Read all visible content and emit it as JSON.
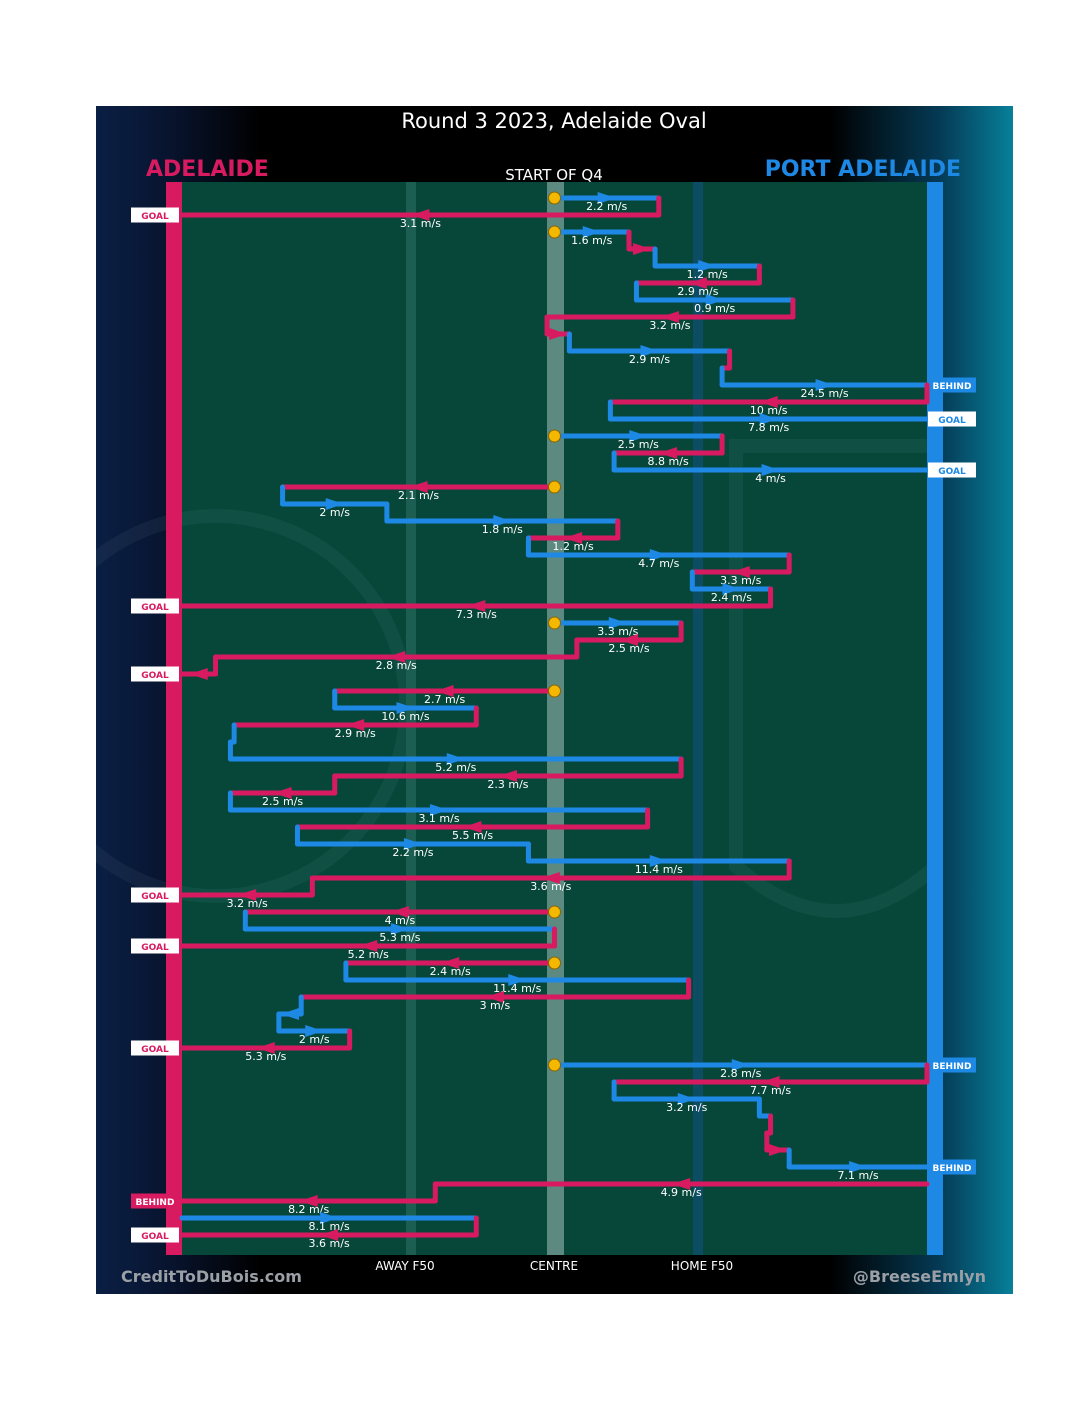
{
  "title": "Round 3 2023, Adelaide Oval",
  "teams": {
    "left": {
      "name": "ADELAIDE",
      "color": "#d81b60"
    },
    "right": {
      "name": "PORT ADELAIDE",
      "color": "#1e88e5"
    }
  },
  "subtitle": "START OF Q4",
  "footer": {
    "left": "CreditToDuBois.com",
    "right": "@BreeseEmlyn"
  },
  "chart_data": {
    "type": "line",
    "title": "Round 3 2023, Adelaide Oval",
    "x_axis_labels": [
      "AWAY F50",
      "CENTRE",
      "HOME F50"
    ],
    "colors": {
      "adelaide": "#d81b60",
      "port_adelaide": "#1e88e5",
      "stoppage": "#f5b800",
      "ground": "#06473a"
    },
    "x_scale": "field position from Adelaide's goal (0) to Port Adelaide's goal (100); centre = 50",
    "chains": [
      {
        "segments": [
          {
            "team": "port_adelaide",
            "start": 50,
            "peak": 64,
            "end": 64,
            "speed": "2.2 m/s"
          },
          {
            "team": "adelaide",
            "start": 64,
            "end": 0,
            "speed": "3.1 m/s",
            "result": "GOAL"
          }
        ]
      },
      {
        "segments": [
          {
            "team": "port_adelaide",
            "start": 50,
            "end": 60,
            "speed": "1.6 m/s"
          },
          {
            "team": "adelaide",
            "start": 60,
            "end": 63.5,
            "speed": ""
          },
          {
            "team": "port_adelaide",
            "start": 63.5,
            "peak": 77.5,
            "end": 77.5,
            "speed": "1.2 m/s"
          },
          {
            "team": "adelaide",
            "start": 77.5,
            "end": 61,
            "speed": "2.9 m/s"
          },
          {
            "team": "port_adelaide",
            "start": 61,
            "end": 82,
            "speed": "0.9 m/s"
          },
          {
            "team": "adelaide",
            "start": 82,
            "end": 49,
            "speed": "3.2 m/s"
          },
          {
            "team": "adelaide",
            "start": 49,
            "end": 52,
            "speed": ""
          },
          {
            "team": "port_adelaide",
            "start": 52,
            "end": 73.5,
            "speed": "2.9 m/s"
          },
          {
            "team": "adelaide",
            "start": 73.5,
            "end": 72.5,
            "speed": ""
          },
          {
            "team": "port_adelaide",
            "start": 72.5,
            "end": 100,
            "speed": "24.5 m/s",
            "result": "BEHIND"
          },
          {
            "team": "adelaide",
            "start": 100,
            "end": 57.5,
            "speed": "10 m/s"
          },
          {
            "team": "port_adelaide",
            "start": 57.5,
            "end": 100,
            "speed": "7.8 m/s",
            "result": "GOAL"
          }
        ]
      },
      {
        "segments": [
          {
            "team": "port_adelaide",
            "start": 50,
            "end": 72.5,
            "speed": "2.5 m/s"
          },
          {
            "team": "adelaide",
            "start": 72.5,
            "end": 58,
            "speed": "8.8 m/s"
          },
          {
            "team": "port_adelaide",
            "start": 58,
            "end": 100,
            "speed": "4 m/s",
            "result": "GOAL"
          }
        ]
      },
      {
        "segments": [
          {
            "team": "adelaide",
            "start": 50,
            "end": 13.5,
            "speed": "2.1 m/s"
          },
          {
            "team": "port_adelaide",
            "start": 13.5,
            "end": 27.5,
            "speed": "2 m/s"
          },
          {
            "team": "port_adelaide",
            "start": 27.5,
            "end": 58.5,
            "speed": "1.8 m/s"
          },
          {
            "team": "adelaide",
            "start": 58.5,
            "end": 46.5,
            "speed": "1.2 m/s"
          },
          {
            "team": "port_adelaide",
            "start": 46.5,
            "end": 81.5,
            "speed": "4.7 m/s"
          },
          {
            "team": "adelaide",
            "start": 81.5,
            "end": 68.5,
            "speed": "3.3 m/s"
          },
          {
            "team": "port_adelaide",
            "start": 68.5,
            "end": 79,
            "speed": "2.4 m/s"
          },
          {
            "team": "adelaide",
            "start": 79,
            "end": 0,
            "speed": "7.3 m/s",
            "result": "GOAL"
          }
        ]
      },
      {
        "segments": [
          {
            "team": "port_adelaide",
            "start": 50,
            "end": 67,
            "speed": "3.3 m/s"
          },
          {
            "team": "adelaide",
            "start": 67,
            "end": 53,
            "speed": "2.5 m/s"
          },
          {
            "team": "adelaide",
            "start": 53,
            "peak": 4.5,
            "end": 4.5,
            "speed": "2.8 m/s"
          },
          {
            "team": "adelaide",
            "start": 4.5,
            "end": 0,
            "speed": "",
            "result": "GOAL"
          }
        ]
      },
      {
        "segments": [
          {
            "team": "adelaide",
            "start": 50,
            "end": 20.5,
            "speed": "2.7 m/s"
          },
          {
            "team": "port_adelaide",
            "start": 20.5,
            "end": 39.5,
            "speed": "10.6 m/s"
          },
          {
            "team": "adelaide",
            "start": 39.5,
            "end": 7,
            "speed": "2.9 m/s"
          },
          {
            "team": "port_adelaide",
            "start": 7,
            "end": 6.5,
            "speed": ""
          },
          {
            "team": "port_adelaide",
            "start": 6.5,
            "end": 67,
            "speed": "5.2 m/s"
          },
          {
            "team": "adelaide",
            "start": 67,
            "end": 20.5,
            "speed": "2.3 m/s"
          },
          {
            "team": "adelaide",
            "start": 20.5,
            "end": 6.5,
            "speed": "2.5 m/s"
          },
          {
            "team": "port_adelaide",
            "start": 6.5,
            "end": 62.5,
            "speed": "3.1 m/s"
          },
          {
            "team": "adelaide",
            "start": 62.5,
            "end": 15.5,
            "speed": "5.5 m/s"
          },
          {
            "team": "port_adelaide",
            "start": 15.5,
            "end": 46.5,
            "speed": "2.2 m/s"
          },
          {
            "team": "port_adelaide",
            "start": 46.5,
            "end": 81.5,
            "speed": "11.4 m/s"
          },
          {
            "team": "adelaide",
            "start": 81.5,
            "end": 17.5,
            "speed": "3.6 m/s"
          },
          {
            "team": "adelaide",
            "start": 17.5,
            "end": 0,
            "speed": "3.2 m/s",
            "result": "GOAL"
          }
        ]
      },
      {
        "segments": [
          {
            "team": "adelaide",
            "start": 50,
            "end": 8.5,
            "speed": "4 m/s"
          },
          {
            "team": "port_adelaide",
            "start": 8.5,
            "end": 50,
            "speed": "5.3 m/s"
          },
          {
            "team": "adelaide",
            "start": 50,
            "end": 0,
            "speed": "5.2 m/s",
            "result": "GOAL"
          }
        ]
      },
      {
        "segments": [
          {
            "team": "adelaide",
            "start": 50,
            "end": 22,
            "speed": "2.4 m/s"
          },
          {
            "team": "port_adelaide",
            "start": 22,
            "end": 68,
            "speed": "11.4 m/s"
          },
          {
            "team": "adelaide",
            "start": 68,
            "end": 16,
            "speed": "3 m/s"
          },
          {
            "team": "port_adelaide",
            "start": 16,
            "end": 13,
            "speed": ""
          },
          {
            "team": "port_adelaide",
            "start": 13,
            "end": 22.5,
            "speed": "2 m/s"
          },
          {
            "team": "adelaide",
            "start": 22.5,
            "end": 0,
            "speed": "5.3 m/s",
            "result": "GOAL"
          }
        ]
      },
      {
        "segments": [
          {
            "team": "port_adelaide",
            "start": 50,
            "end": 100,
            "speed": "2.8 m/s",
            "result": "BEHIND"
          },
          {
            "team": "adelaide",
            "start": 100,
            "end": 58,
            "speed": "7.7 m/s"
          },
          {
            "team": "port_adelaide",
            "start": 58,
            "end": 77.5,
            "speed": "3.2 m/s"
          },
          {
            "team": "port_adelaide",
            "start": 77.5,
            "end": 79,
            "speed": ""
          },
          {
            "team": "adelaide",
            "start": 79,
            "end": 78.5,
            "speed": ""
          },
          {
            "team": "adelaide",
            "start": 78.5,
            "end": 81.5,
            "speed": ""
          },
          {
            "team": "port_adelaide",
            "start": 81.5,
            "end": 100,
            "speed": "7.1 m/s",
            "result": "BEHIND"
          }
        ]
      },
      {
        "segments": [
          {
            "team": "adelaide",
            "start": 100,
            "end": 34,
            "speed": "4.9 m/s"
          },
          {
            "team": "adelaide",
            "start": 34,
            "end": 0,
            "speed": "8.2 m/s",
            "result": "BEHIND"
          }
        ]
      },
      {
        "segments": [
          {
            "team": "port_adelaide",
            "start": 0,
            "end": 39.5,
            "speed": "8.1 m/s"
          },
          {
            "team": "adelaide",
            "start": 39.5,
            "end": 0,
            "speed": "3.6 m/s",
            "result": "GOAL"
          }
        ]
      }
    ]
  }
}
